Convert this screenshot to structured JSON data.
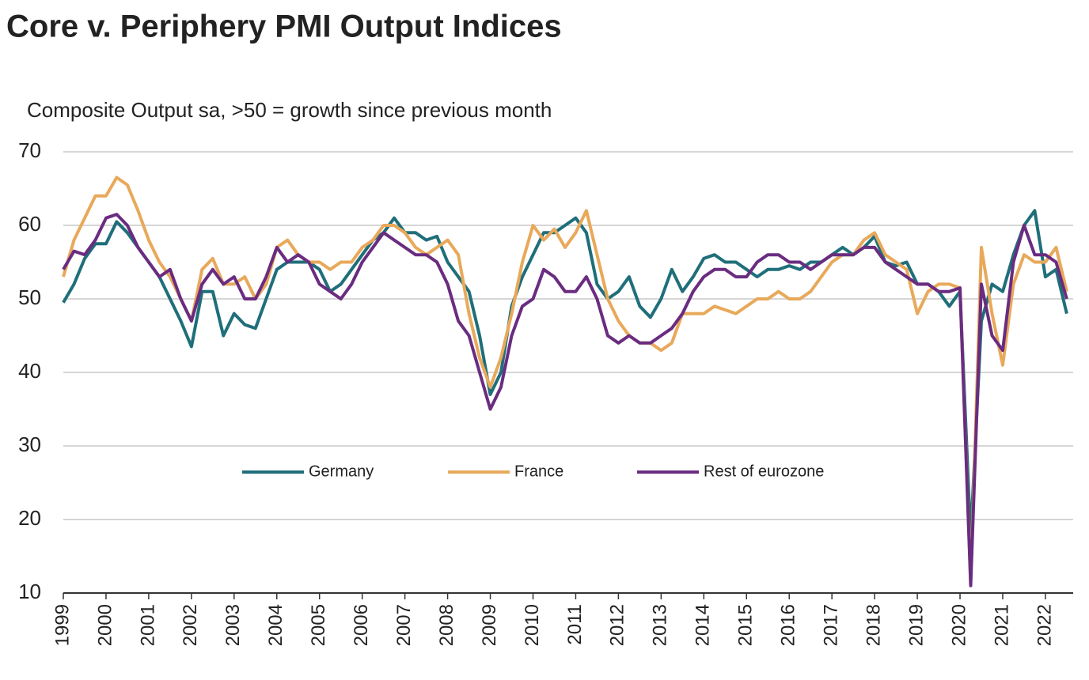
{
  "chart_data": {
    "type": "line",
    "title": "Core v. Periphery PMI Output Indices",
    "subtitle": "Composite Output sa, >50 = growth since previous  month",
    "x": [
      1999,
      1999.25,
      1999.5,
      1999.75,
      2000,
      2000.25,
      2000.5,
      2000.75,
      2001,
      2001.25,
      2001.5,
      2001.75,
      2002,
      2002.25,
      2002.5,
      2002.75,
      2003,
      2003.25,
      2003.5,
      2003.75,
      2004,
      2004.25,
      2004.5,
      2004.75,
      2005,
      2005.25,
      2005.5,
      2005.75,
      2006,
      2006.25,
      2006.5,
      2006.75,
      2007,
      2007.25,
      2007.5,
      2007.75,
      2008,
      2008.25,
      2008.5,
      2008.75,
      2009,
      2009.25,
      2009.5,
      2009.75,
      2010,
      2010.25,
      2010.5,
      2010.75,
      2011,
      2011.25,
      2011.5,
      2011.75,
      2012,
      2012.25,
      2012.5,
      2012.75,
      2013,
      2013.25,
      2013.5,
      2013.75,
      2014,
      2014.25,
      2014.5,
      2014.75,
      2015,
      2015.25,
      2015.5,
      2015.75,
      2016,
      2016.25,
      2016.5,
      2016.75,
      2017,
      2017.25,
      2017.5,
      2017.75,
      2018,
      2018.25,
      2018.5,
      2018.75,
      2019,
      2019.25,
      2019.5,
      2019.75,
      2020,
      2020.25,
      2020.5,
      2020.75,
      2021,
      2021.25,
      2021.5,
      2021.75,
      2022,
      2022.25,
      2022.5
    ],
    "series": [
      {
        "name": "Germany",
        "color": "#1f6f7a",
        "values": [
          49.5,
          52,
          55.5,
          57.5,
          57.5,
          60.5,
          59,
          57,
          55,
          53,
          50,
          47,
          43.5,
          51,
          51,
          45,
          48,
          46.5,
          46,
          50,
          54,
          55,
          55,
          55,
          54,
          51,
          52,
          54,
          56,
          58,
          59,
          61,
          59,
          59,
          58,
          58.5,
          55,
          53,
          51,
          45,
          37,
          40,
          49,
          53,
          56,
          59,
          59,
          60,
          61,
          59,
          52,
          50,
          51,
          53,
          49,
          47.5,
          50,
          54,
          51,
          53,
          55.5,
          56,
          55,
          55,
          54,
          53,
          54,
          54,
          54.5,
          54,
          55,
          55,
          56,
          57,
          56,
          57,
          58.5,
          55,
          54.5,
          55,
          52,
          52,
          51,
          49,
          51,
          17.5,
          47,
          52,
          51,
          56,
          60,
          62,
          53,
          54,
          48
        ]
      },
      {
        "name": "France",
        "color": "#e8a95b",
        "values": [
          53,
          58,
          61,
          64,
          64,
          66.5,
          65.5,
          62,
          58,
          55,
          53,
          50,
          47,
          54,
          55.5,
          52,
          52,
          53,
          50,
          52,
          57,
          58,
          56,
          55,
          55,
          54,
          55,
          55,
          57,
          58,
          60,
          60,
          59,
          57,
          56,
          57,
          58,
          56,
          48,
          42,
          38,
          42,
          48,
          55,
          60,
          58,
          59.5,
          57,
          59,
          62,
          56,
          50,
          47,
          45,
          44,
          44,
          43,
          44,
          48,
          48,
          48,
          49,
          48.5,
          48,
          49,
          50,
          50,
          51,
          50,
          50,
          51,
          53,
          55,
          56,
          56,
          58,
          59,
          56,
          55,
          54,
          48,
          51,
          52,
          52,
          51.5,
          11.5,
          57,
          48,
          41,
          52,
          56,
          55,
          55,
          57,
          51
        ]
      },
      {
        "name": "Rest of eurozone",
        "color": "#6a2c80",
        "values": [
          54,
          56.5,
          56,
          58,
          61,
          61.5,
          60,
          57,
          55,
          53,
          54,
          50,
          47,
          52,
          54,
          52,
          53,
          50,
          50,
          53,
          57,
          55,
          56,
          55,
          52,
          51,
          50,
          52,
          55,
          57,
          59,
          58,
          57,
          56,
          56,
          55,
          52,
          47,
          45,
          40,
          35,
          38,
          45,
          49,
          50,
          54,
          53,
          51,
          51,
          53,
          50,
          45,
          44,
          45,
          44,
          44,
          45,
          46,
          48,
          51,
          53,
          54,
          54,
          53,
          53,
          55,
          56,
          56,
          55,
          55,
          54,
          55,
          56,
          56,
          56,
          57,
          57,
          55,
          54,
          53,
          52,
          52,
          51,
          51,
          51.5,
          11,
          52,
          45,
          43,
          55,
          60,
          56,
          56,
          55,
          50
        ]
      }
    ],
    "xlim": [
      1999,
      2022.65
    ],
    "xticks": [
      1999,
      2000,
      2001,
      2002,
      2003,
      2004,
      2005,
      2006,
      2007,
      2008,
      2009,
      2010,
      2011,
      2012,
      2013,
      2014,
      2015,
      2016,
      2017,
      2018,
      2019,
      2020,
      2021,
      2022
    ],
    "ylim": [
      10,
      70
    ],
    "yticks": [
      10,
      20,
      30,
      40,
      50,
      60,
      70
    ],
    "grid": true,
    "legend": "center"
  }
}
